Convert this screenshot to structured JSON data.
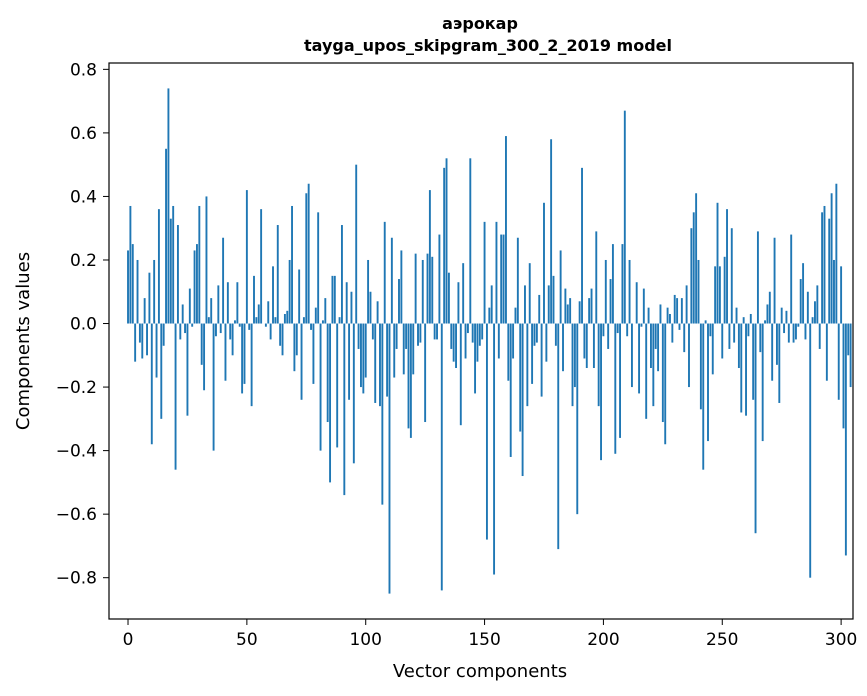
{
  "chart_data": {
    "type": "bar",
    "title_line1": "аэрокар",
    "title_line2": "tayga_upos_skipgram_300_2_2019 model",
    "xlabel": "Vector components",
    "ylabel": "Components values",
    "xlim": [
      -8,
      305
    ],
    "ylim": [
      -0.93,
      0.82
    ],
    "xticks": [
      0,
      50,
      100,
      150,
      200,
      250,
      300
    ],
    "yticks": [
      -0.8,
      -0.6,
      -0.4,
      -0.2,
      0.0,
      0.2,
      0.4,
      0.6,
      0.8
    ],
    "ytick_labels": [
      "−0.8",
      "−0.6",
      "−0.4",
      "−0.2",
      "0.0",
      "0.2",
      "0.4",
      "0.6",
      "0.8"
    ],
    "xtick_labels": [
      "0",
      "50",
      "100",
      "150",
      "200",
      "250",
      "300"
    ],
    "bar_color": "#1f77b4",
    "values": [
      0.23,
      0.37,
      0.25,
      -0.12,
      0.2,
      -0.06,
      -0.11,
      0.08,
      -0.1,
      0.16,
      -0.38,
      0.2,
      -0.17,
      0.36,
      -0.3,
      -0.07,
      0.55,
      0.74,
      0.33,
      0.37,
      -0.46,
      0.31,
      -0.05,
      0.06,
      -0.03,
      -0.29,
      0.11,
      -0.01,
      0.23,
      0.25,
      0.37,
      -0.13,
      -0.21,
      0.4,
      0.02,
      0.08,
      -0.4,
      -0.04,
      0.12,
      -0.03,
      0.27,
      -0.18,
      0.13,
      -0.05,
      -0.1,
      0.01,
      0.13,
      -0.01,
      -0.22,
      -0.19,
      0.42,
      -0.02,
      -0.26,
      0.15,
      0.02,
      0.06,
      0.36,
      0.0,
      -0.01,
      0.07,
      -0.05,
      0.18,
      0.02,
      0.31,
      -0.07,
      -0.1,
      0.03,
      0.04,
      0.2,
      0.37,
      -0.15,
      -0.1,
      0.17,
      -0.24,
      0.02,
      0.41,
      0.44,
      -0.02,
      -0.19,
      0.05,
      0.35,
      -0.4,
      0.01,
      0.08,
      -0.31,
      -0.5,
      0.15,
      0.15,
      -0.39,
      0.02,
      0.31,
      -0.54,
      0.13,
      -0.24,
      0.1,
      -0.44,
      0.5,
      -0.08,
      -0.2,
      -0.22,
      -0.17,
      0.2,
      0.1,
      -0.05,
      -0.25,
      0.07,
      -0.26,
      -0.57,
      0.32,
      -0.23,
      -0.85,
      0.27,
      -0.17,
      -0.08,
      0.14,
      0.23,
      -0.16,
      -0.08,
      -0.33,
      -0.36,
      -0.16,
      0.22,
      -0.07,
      -0.06,
      0.2,
      -0.31,
      0.22,
      0.42,
      0.21,
      -0.05,
      -0.05,
      0.28,
      -0.84,
      0.49,
      0.52,
      0.16,
      -0.08,
      -0.12,
      -0.14,
      0.13,
      -0.32,
      0.19,
      -0.11,
      -0.03,
      0.52,
      -0.06,
      -0.22,
      -0.12,
      -0.07,
      -0.05,
      0.32,
      -0.68,
      0.05,
      0.12,
      -0.79,
      0.32,
      -0.11,
      0.28,
      0.28,
      0.59,
      -0.18,
      -0.42,
      -0.11,
      0.05,
      0.27,
      -0.34,
      -0.48,
      0.12,
      -0.26,
      0.19,
      -0.19,
      -0.07,
      -0.06,
      0.09,
      -0.23,
      0.38,
      -0.12,
      0.12,
      0.58,
      0.15,
      -0.07,
      -0.71,
      0.23,
      -0.15,
      0.11,
      0.06,
      0.08,
      -0.26,
      -0.2,
      -0.6,
      0.07,
      0.49,
      -0.11,
      -0.14,
      0.08,
      0.11,
      -0.14,
      0.29,
      -0.26,
      -0.43,
      -0.04,
      0.2,
      -0.08,
      0.14,
      0.25,
      -0.41,
      -0.03,
      -0.36,
      0.25,
      0.67,
      -0.04,
      0.2,
      -0.2,
      0.0,
      0.13,
      -0.22,
      -0.01,
      0.11,
      -0.3,
      0.05,
      -0.14,
      -0.26,
      -0.08,
      -0.15,
      0.06,
      -0.31,
      -0.38,
      0.05,
      0.03,
      -0.06,
      0.09,
      0.08,
      -0.02,
      0.08,
      -0.09,
      0.12,
      -0.2,
      0.3,
      0.35,
      0.41,
      0.2,
      -0.27,
      -0.46,
      0.01,
      -0.37,
      -0.04,
      -0.16,
      0.18,
      0.38,
      0.18,
      -0.11,
      0.21,
      0.36,
      -0.08,
      0.3,
      -0.06,
      0.05,
      -0.14,
      -0.28,
      0.02,
      -0.29,
      -0.04,
      0.03,
      -0.24,
      -0.66,
      0.29,
      -0.09,
      -0.37,
      0.01,
      0.06,
      0.1,
      -0.18,
      0.27,
      -0.13,
      -0.25,
      0.05,
      -0.03,
      0.04,
      -0.06,
      0.28,
      -0.06,
      -0.05,
      -0.01,
      0.14,
      0.19,
      -0.05,
      0.1,
      -0.8,
      0.02,
      0.07,
      0.12,
      -0.08,
      0.35,
      0.37,
      -0.18,
      0.33,
      0.41,
      0.2,
      0.44,
      -0.24,
      0.18,
      -0.33,
      -0.73,
      -0.1,
      -0.2
    ]
  }
}
